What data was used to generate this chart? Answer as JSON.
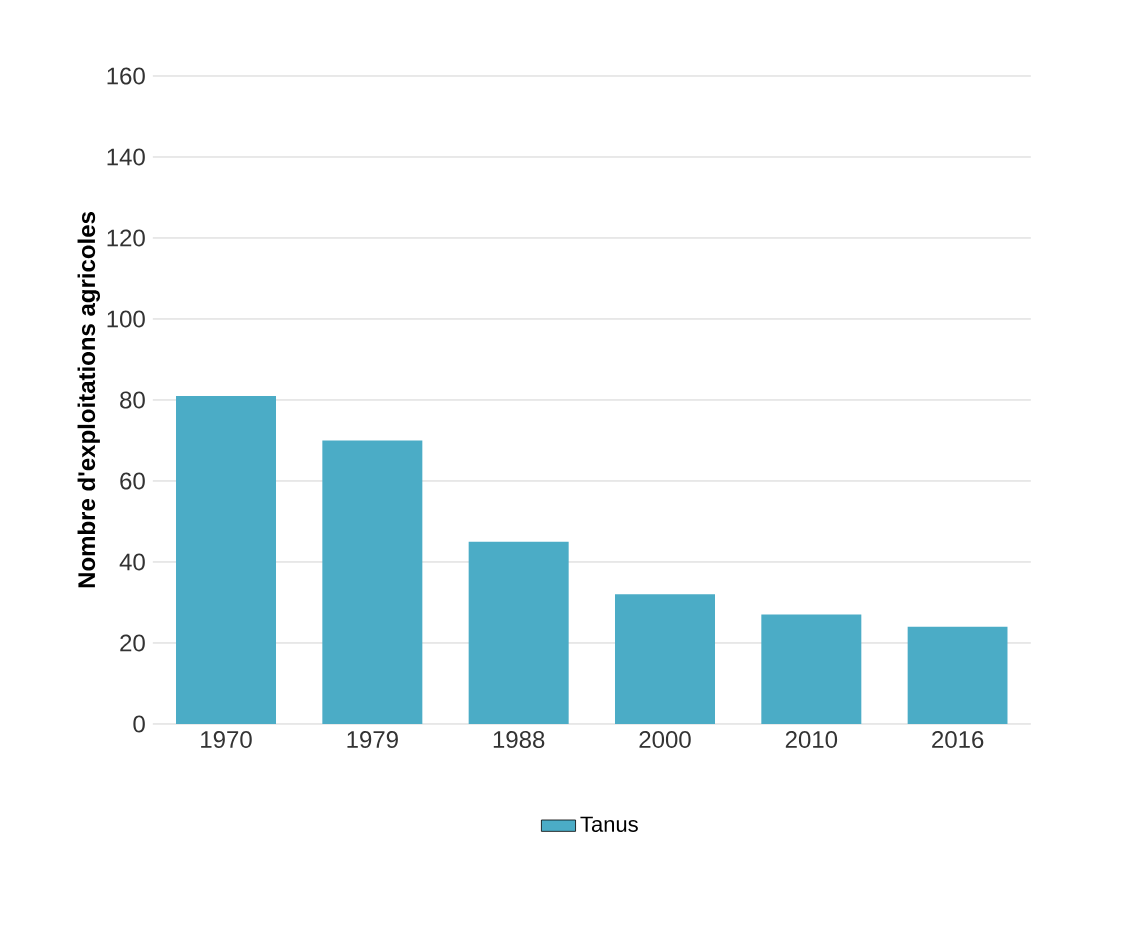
{
  "chart_data": {
    "type": "bar",
    "ylabel": "Nombre d'exploitations agricoles",
    "categories": [
      "1970",
      "1979",
      "1988",
      "2000",
      "2010",
      "2016"
    ],
    "series": [
      {
        "name": "Tanus",
        "color": "#4bacc6",
        "values": [
          81,
          70,
          45,
          32,
          27,
          24
        ]
      }
    ],
    "ylim": [
      0,
      160
    ],
    "yticks": [
      0,
      20,
      40,
      60,
      80,
      100,
      120,
      140,
      160
    ],
    "grid": "y",
    "legend": "bottom"
  }
}
